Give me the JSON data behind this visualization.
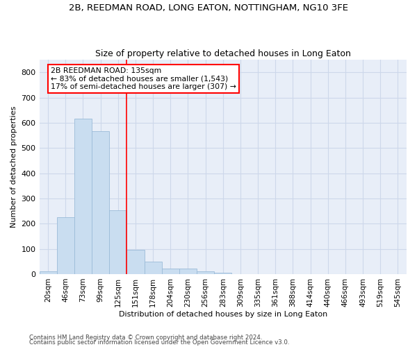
{
  "title_line1": "2B, REEDMAN ROAD, LONG EATON, NOTTINGHAM, NG10 3FE",
  "title_line2": "Size of property relative to detached houses in Long Eaton",
  "xlabel": "Distribution of detached houses by size in Long Eaton",
  "ylabel": "Number of detached properties",
  "bin_labels": [
    "20sqm",
    "46sqm",
    "73sqm",
    "99sqm",
    "125sqm",
    "151sqm",
    "178sqm",
    "204sqm",
    "230sqm",
    "256sqm",
    "283sqm",
    "309sqm",
    "335sqm",
    "361sqm",
    "388sqm",
    "414sqm",
    "440sqm",
    "466sqm",
    "493sqm",
    "519sqm",
    "545sqm"
  ],
  "bar_values": [
    10,
    225,
    617,
    567,
    252,
    97,
    50,
    22,
    22,
    12,
    5,
    0,
    0,
    0,
    0,
    0,
    0,
    0,
    0,
    0,
    0
  ],
  "bar_color": "#c9ddf0",
  "bar_edge_color": "#9bbbd8",
  "property_line_x": 4.5,
  "annotation_text_line1": "2B REEDMAN ROAD: 135sqm",
  "annotation_text_line2": "← 83% of detached houses are smaller (1,543)",
  "annotation_text_line3": "17% of semi-detached houses are larger (307) →",
  "ylim": [
    0,
    850
  ],
  "yticks": [
    0,
    100,
    200,
    300,
    400,
    500,
    600,
    700,
    800
  ],
  "grid_color": "#cdd8ea",
  "background_color": "#e8eef8",
  "footnote_line1": "Contains HM Land Registry data © Crown copyright and database right 2024.",
  "footnote_line2": "Contains public sector information licensed under the Open Government Licence v3.0."
}
